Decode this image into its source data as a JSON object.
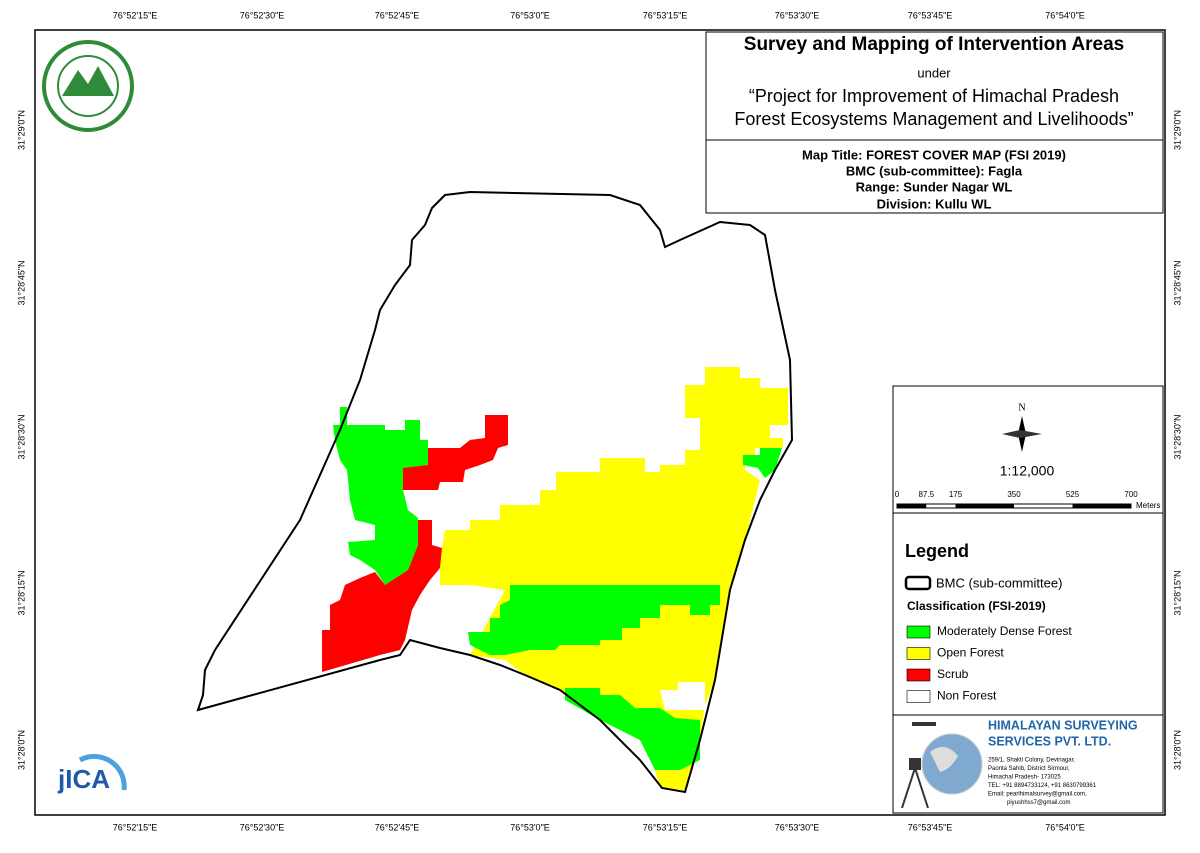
{
  "graticule": {
    "longitudes": [
      "76°52'15\"E",
      "76°52'30\"E",
      "76°52'45\"E",
      "76°53'0\"E",
      "76°53'15\"E",
      "76°53'30\"E",
      "76°53'45\"E",
      "76°54'0\"E"
    ],
    "latitudes": [
      "31°29'0\"N",
      "31°28'45\"N",
      "31°28'30\"N",
      "31°28'15\"N",
      "31°28'0\"N"
    ]
  },
  "header": {
    "title": "Survey and Mapping of Intervention Areas",
    "under": "under",
    "project_line1": "“Project for Improvement of Himachal Pradesh",
    "project_line2": "Forest Ecosystems Management and Livelihoods”"
  },
  "map_info": {
    "map_title": "Map Title: FOREST COVER MAP (FSI 2019)",
    "bmc": "BMC (sub-committee): Fagla",
    "range": "Range: Sunder Nagar WL",
    "division": "Division: Kullu WL"
  },
  "north": "N",
  "scale": "1:12,000",
  "scale_bar": {
    "labels": [
      0,
      87.5,
      175,
      350,
      525,
      700
    ],
    "unit": "Meters"
  },
  "legend": {
    "title": "Legend",
    "boundary": "BMC (sub-committee)",
    "classification": "Classification (FSI-2019)",
    "items": [
      {
        "label": "Moderately Dense Forest",
        "color": "#00ff00"
      },
      {
        "label": "Open Forest",
        "color": "#ffff00"
      },
      {
        "label": "Scrub",
        "color": "#ff0000"
      },
      {
        "label": "Non Forest",
        "color": "#ffffff"
      }
    ]
  },
  "company": {
    "name_line1": "HIMALAYAN SURVEYING",
    "name_line2": "SERVICES PVT. LTD.",
    "address": [
      "259/1, Shakti Colony, Devinagar,",
      "Paonta Sahib, District Sirmour,",
      "Himachal Pradesh- 173025",
      "TEL: +91 8894733124, +91 8630799361",
      "Email: pearlhimalsurvey@gmail.com,",
      "piyushhss7@gmail.com"
    ]
  },
  "jica": "jICA"
}
